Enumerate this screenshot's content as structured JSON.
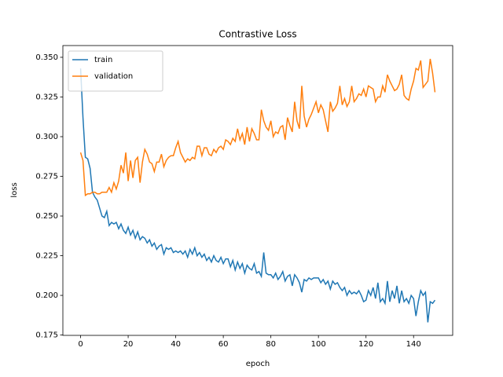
{
  "chart_data": {
    "type": "line",
    "title": "Contrastive Loss",
    "x_label": "epoch",
    "y_label": "loss",
    "x": [
      0,
      1,
      2,
      3,
      4,
      5,
      6,
      7,
      8,
      9,
      10,
      11,
      12,
      13,
      14,
      15,
      16,
      17,
      18,
      19,
      20,
      21,
      22,
      23,
      24,
      25,
      26,
      27,
      28,
      29,
      30,
      31,
      32,
      33,
      34,
      35,
      36,
      37,
      38,
      39,
      40,
      41,
      42,
      43,
      44,
      45,
      46,
      47,
      48,
      49,
      50,
      51,
      52,
      53,
      54,
      55,
      56,
      57,
      58,
      59,
      60,
      61,
      62,
      63,
      64,
      65,
      66,
      67,
      68,
      69,
      70,
      71,
      72,
      73,
      74,
      75,
      76,
      77,
      78,
      79,
      80,
      81,
      82,
      83,
      84,
      85,
      86,
      87,
      88,
      89,
      90,
      91,
      92,
      93,
      94,
      95,
      96,
      97,
      98,
      99,
      100,
      101,
      102,
      103,
      104,
      105,
      106,
      107,
      108,
      109,
      110,
      111,
      112,
      113,
      114,
      115,
      116,
      117,
      118,
      119,
      120,
      121,
      122,
      123,
      124,
      125,
      126,
      127,
      128,
      129,
      130,
      131,
      132,
      133,
      134,
      135,
      136,
      137,
      138,
      139,
      140,
      141,
      142,
      143,
      144,
      145,
      146,
      147,
      148,
      149
    ],
    "series": [
      {
        "name": "train",
        "color": "#1f77b4",
        "values": [
          0.343,
          0.312,
          0.287,
          0.286,
          0.28,
          0.265,
          0.262,
          0.26,
          0.255,
          0.25,
          0.249,
          0.253,
          0.244,
          0.246,
          0.245,
          0.246,
          0.242,
          0.245,
          0.241,
          0.239,
          0.243,
          0.238,
          0.241,
          0.236,
          0.24,
          0.235,
          0.237,
          0.236,
          0.233,
          0.235,
          0.231,
          0.233,
          0.229,
          0.231,
          0.232,
          0.226,
          0.23,
          0.229,
          0.23,
          0.227,
          0.228,
          0.227,
          0.228,
          0.226,
          0.228,
          0.224,
          0.229,
          0.226,
          0.23,
          0.225,
          0.227,
          0.224,
          0.226,
          0.222,
          0.224,
          0.221,
          0.225,
          0.222,
          0.221,
          0.224,
          0.22,
          0.223,
          0.223,
          0.218,
          0.222,
          0.216,
          0.221,
          0.217,
          0.22,
          0.214,
          0.219,
          0.217,
          0.216,
          0.22,
          0.214,
          0.215,
          0.212,
          0.227,
          0.214,
          0.213,
          0.213,
          0.211,
          0.214,
          0.21,
          0.212,
          0.215,
          0.209,
          0.212,
          0.213,
          0.206,
          0.213,
          0.211,
          0.208,
          0.202,
          0.21,
          0.209,
          0.211,
          0.21,
          0.211,
          0.211,
          0.211,
          0.208,
          0.21,
          0.207,
          0.209,
          0.204,
          0.209,
          0.207,
          0.208,
          0.205,
          0.203,
          0.205,
          0.2,
          0.203,
          0.201,
          0.202,
          0.201,
          0.203,
          0.2,
          0.196,
          0.197,
          0.203,
          0.2,
          0.205,
          0.198,
          0.208,
          0.196,
          0.198,
          0.195,
          0.209,
          0.196,
          0.203,
          0.198,
          0.206,
          0.195,
          0.203,
          0.196,
          0.198,
          0.195,
          0.2,
          0.198,
          0.187,
          0.196,
          0.203,
          0.2,
          0.202,
          0.183,
          0.196,
          0.195,
          0.197
        ]
      },
      {
        "name": "validation",
        "color": "#ff7f0e",
        "values": [
          0.29,
          0.285,
          0.263,
          0.264,
          0.264,
          0.265,
          0.265,
          0.264,
          0.264,
          0.265,
          0.265,
          0.265,
          0.268,
          0.265,
          0.271,
          0.267,
          0.272,
          0.282,
          0.277,
          0.29,
          0.272,
          0.285,
          0.274,
          0.285,
          0.287,
          0.271,
          0.284,
          0.292,
          0.289,
          0.284,
          0.283,
          0.278,
          0.284,
          0.284,
          0.289,
          0.281,
          0.285,
          0.287,
          0.288,
          0.288,
          0.293,
          0.297,
          0.29,
          0.287,
          0.284,
          0.286,
          0.285,
          0.287,
          0.286,
          0.294,
          0.294,
          0.288,
          0.293,
          0.293,
          0.289,
          0.288,
          0.292,
          0.29,
          0.293,
          0.294,
          0.292,
          0.298,
          0.297,
          0.295,
          0.299,
          0.297,
          0.305,
          0.298,
          0.302,
          0.295,
          0.306,
          0.297,
          0.305,
          0.302,
          0.298,
          0.298,
          0.317,
          0.31,
          0.306,
          0.304,
          0.31,
          0.3,
          0.303,
          0.302,
          0.306,
          0.307,
          0.298,
          0.312,
          0.307,
          0.303,
          0.322,
          0.31,
          0.305,
          0.332,
          0.313,
          0.306,
          0.311,
          0.314,
          0.318,
          0.322,
          0.315,
          0.32,
          0.317,
          0.31,
          0.303,
          0.322,
          0.316,
          0.318,
          0.321,
          0.332,
          0.32,
          0.324,
          0.319,
          0.322,
          0.332,
          0.322,
          0.324,
          0.327,
          0.326,
          0.33,
          0.325,
          0.332,
          0.331,
          0.33,
          0.322,
          0.325,
          0.325,
          0.332,
          0.328,
          0.339,
          0.335,
          0.332,
          0.329,
          0.33,
          0.333,
          0.339,
          0.326,
          0.324,
          0.323,
          0.33,
          0.335,
          0.343,
          0.342,
          0.348,
          0.331,
          0.333,
          0.335,
          0.349,
          0.34,
          0.328
        ]
      }
    ],
    "xlim": [
      -7.45,
      156.45
    ],
    "xticks": [
      0,
      20,
      40,
      60,
      80,
      100,
      120,
      140
    ],
    "ylim": [
      0.1748,
      0.3574
    ],
    "yticks": [
      0.175,
      {
        "value": 0.2,
        "label": "0.200"
      },
      0.225,
      {
        "value": 0.25,
        "label": "0.250"
      },
      0.275,
      {
        "value": 0.3,
        "label": "0.300"
      },
      0.325,
      {
        "value": 0.35,
        "label": "0.350"
      }
    ],
    "legend": "upper left"
  }
}
